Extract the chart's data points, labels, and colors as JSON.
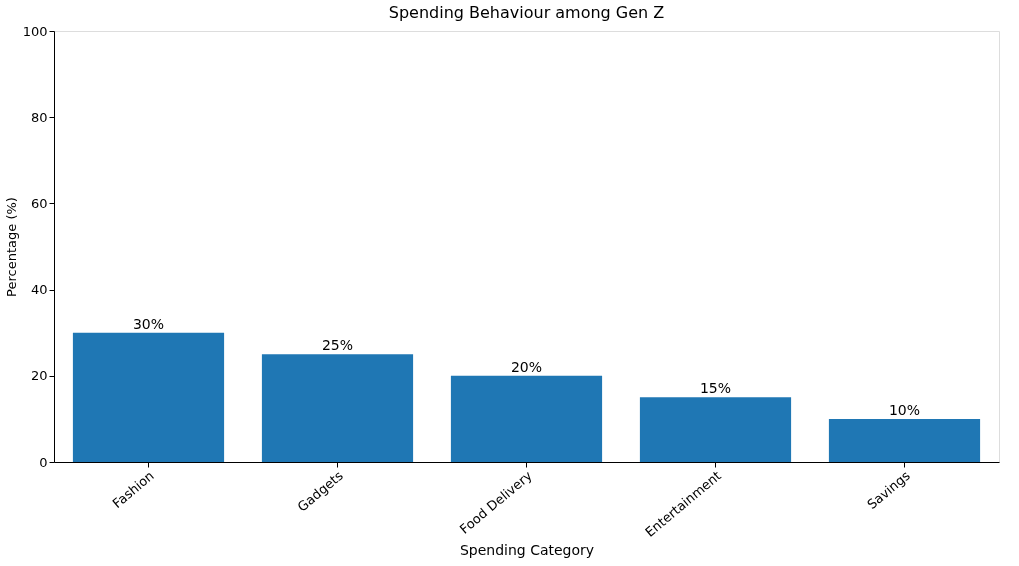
{
  "chart_data": {
    "type": "bar",
    "title": "Spending Behaviour among Gen Z",
    "xlabel": "Spending Category",
    "ylabel": "Percentage (%)",
    "categories": [
      "Fashion",
      "Gadgets",
      "Food Delivery",
      "Entertainment",
      "Savings"
    ],
    "values": [
      30,
      25,
      20,
      15,
      10
    ],
    "color": "#1f77b4",
    "value_labels": [
      "30%",
      "25%",
      "20%",
      "15%",
      "10%"
    ],
    "ylim": [
      0,
      100
    ],
    "yticks": [
      0,
      20,
      40,
      60,
      80,
      100
    ],
    "grid": false
  }
}
